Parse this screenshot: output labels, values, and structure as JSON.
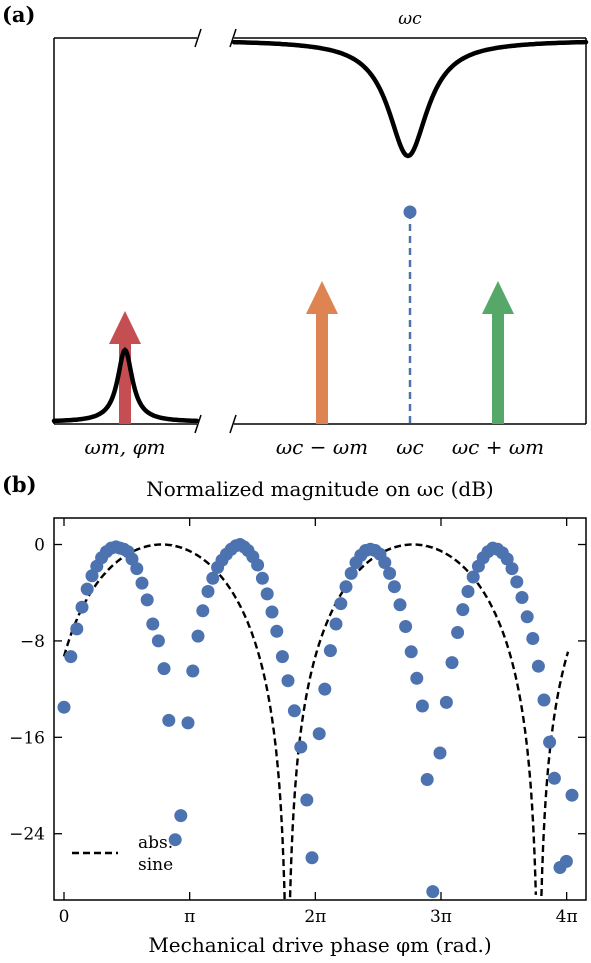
{
  "panel_a": {
    "label": "(a)",
    "top_label": "ωc",
    "bottom_labels": {
      "mech": "ωm, φm",
      "lower": "ωc − ωm",
      "center": "ωc",
      "upper": "ωc + ωm"
    },
    "colors": {
      "mech_arrow": "#c44e52",
      "lower_arrow": "#dd8452",
      "upper_arrow": "#55a868",
      "carrier": "#4c72b0",
      "curve": "#000000"
    }
  },
  "panel_b": {
    "label": "(b)",
    "title": "Normalized magnitude on ωc (dB)",
    "xlabel": "Mechanical drive phase φm (rad.)",
    "legend": {
      "line1": "abs.",
      "line2": "sine",
      "position": "bottom-left"
    }
  },
  "chart_data": {
    "type": "scatter",
    "x_unit": "rad",
    "xlim": [
      -0.25,
      13.05
    ],
    "ylim": [
      -29.5,
      2.2
    ],
    "x_ticks": [
      {
        "value": 0,
        "label": "0"
      },
      {
        "value": 3.14159,
        "label": "π"
      },
      {
        "value": 6.28319,
        "label": "2π"
      },
      {
        "value": 9.42478,
        "label": "3π"
      },
      {
        "value": 12.56637,
        "label": "4π"
      }
    ],
    "y_ticks": [
      {
        "value": 0,
        "label": "0"
      },
      {
        "value": -8,
        "label": "−8"
      },
      {
        "value": -16,
        "label": "−16"
      },
      {
        "value": -24,
        "label": "−24"
      }
    ],
    "marker_color": "#4c72b0",
    "series": [
      {
        "name": "abs. sine",
        "kind": "line",
        "style": "dashed",
        "color": "#000000",
        "model": "20·log10|sin(x/2 + 0.35)|"
      }
    ],
    "points": [
      [
        0.0,
        -13.5
      ],
      [
        0.17,
        -9.3
      ],
      [
        0.32,
        -7.0
      ],
      [
        0.45,
        -5.2
      ],
      [
        0.58,
        -3.7
      ],
      [
        0.7,
        -2.6
      ],
      [
        0.82,
        -1.8
      ],
      [
        0.94,
        -1.1
      ],
      [
        1.06,
        -0.6
      ],
      [
        1.18,
        -0.3
      ],
      [
        1.3,
        -0.2
      ],
      [
        1.4,
        -0.3
      ],
      [
        1.5,
        -0.4
      ],
      [
        1.6,
        -0.6
      ],
      [
        1.7,
        -1.2
      ],
      [
        1.82,
        -2.0
      ],
      [
        1.95,
        -3.2
      ],
      [
        2.08,
        -4.6
      ],
      [
        2.22,
        -6.6
      ],
      [
        2.36,
        -8.0
      ],
      [
        2.5,
        -10.3
      ],
      [
        2.62,
        -14.6
      ],
      [
        2.78,
        -24.5
      ],
      [
        2.92,
        -22.5
      ],
      [
        3.1,
        -14.8
      ],
      [
        3.22,
        -10.5
      ],
      [
        3.35,
        -7.6
      ],
      [
        3.47,
        -5.5
      ],
      [
        3.6,
        -3.9
      ],
      [
        3.72,
        -2.8
      ],
      [
        3.84,
        -1.9
      ],
      [
        3.95,
        -1.3
      ],
      [
        4.06,
        -0.8
      ],
      [
        4.18,
        -0.4
      ],
      [
        4.3,
        -0.1
      ],
      [
        4.4,
        0.0
      ],
      [
        4.5,
        -0.2
      ],
      [
        4.6,
        -0.5
      ],
      [
        4.72,
        -1.0
      ],
      [
        4.84,
        -1.7
      ],
      [
        4.96,
        -2.8
      ],
      [
        5.08,
        -4.1
      ],
      [
        5.2,
        -5.6
      ],
      [
        5.32,
        -7.2
      ],
      [
        5.46,
        -9.3
      ],
      [
        5.6,
        -11.3
      ],
      [
        5.76,
        -13.8
      ],
      [
        5.92,
        -16.8
      ],
      [
        6.07,
        -21.2
      ],
      [
        6.2,
        -26.0
      ],
      [
        6.38,
        -15.7
      ],
      [
        6.52,
        -12.0
      ],
      [
        6.66,
        -8.8
      ],
      [
        6.8,
        -6.6
      ],
      [
        6.92,
        -4.9
      ],
      [
        7.05,
        -3.5
      ],
      [
        7.18,
        -2.4
      ],
      [
        7.3,
        -1.5
      ],
      [
        7.42,
        -0.9
      ],
      [
        7.54,
        -0.5
      ],
      [
        7.66,
        -0.4
      ],
      [
        7.78,
        -0.5
      ],
      [
        7.9,
        -0.8
      ],
      [
        8.02,
        -1.5
      ],
      [
        8.14,
        -2.4
      ],
      [
        8.26,
        -3.5
      ],
      [
        8.4,
        -5.0
      ],
      [
        8.54,
        -6.8
      ],
      [
        8.68,
        -8.9
      ],
      [
        8.82,
        -11.1
      ],
      [
        8.96,
        -13.4
      ],
      [
        9.08,
        -19.5
      ],
      [
        9.22,
        -28.8
      ],
      [
        9.4,
        -17.3
      ],
      [
        9.56,
        -13.1
      ],
      [
        9.7,
        -9.8
      ],
      [
        9.84,
        -7.3
      ],
      [
        9.97,
        -5.4
      ],
      [
        10.1,
        -3.9
      ],
      [
        10.23,
        -2.7
      ],
      [
        10.36,
        -1.8
      ],
      [
        10.48,
        -1.1
      ],
      [
        10.6,
        -0.6
      ],
      [
        10.72,
        -0.3
      ],
      [
        10.84,
        -0.4
      ],
      [
        10.96,
        -0.7
      ],
      [
        11.08,
        -1.2
      ],
      [
        11.2,
        -2.0
      ],
      [
        11.32,
        -3.1
      ],
      [
        11.45,
        -4.4
      ],
      [
        11.58,
        -6.0
      ],
      [
        11.72,
        -7.8
      ],
      [
        11.86,
        -10.1
      ],
      [
        12.0,
        -12.9
      ],
      [
        12.14,
        -16.4
      ],
      [
        12.26,
        -19.4
      ],
      [
        12.4,
        -26.8
      ],
      [
        12.56,
        -26.3
      ],
      [
        12.7,
        -20.8
      ]
    ]
  }
}
